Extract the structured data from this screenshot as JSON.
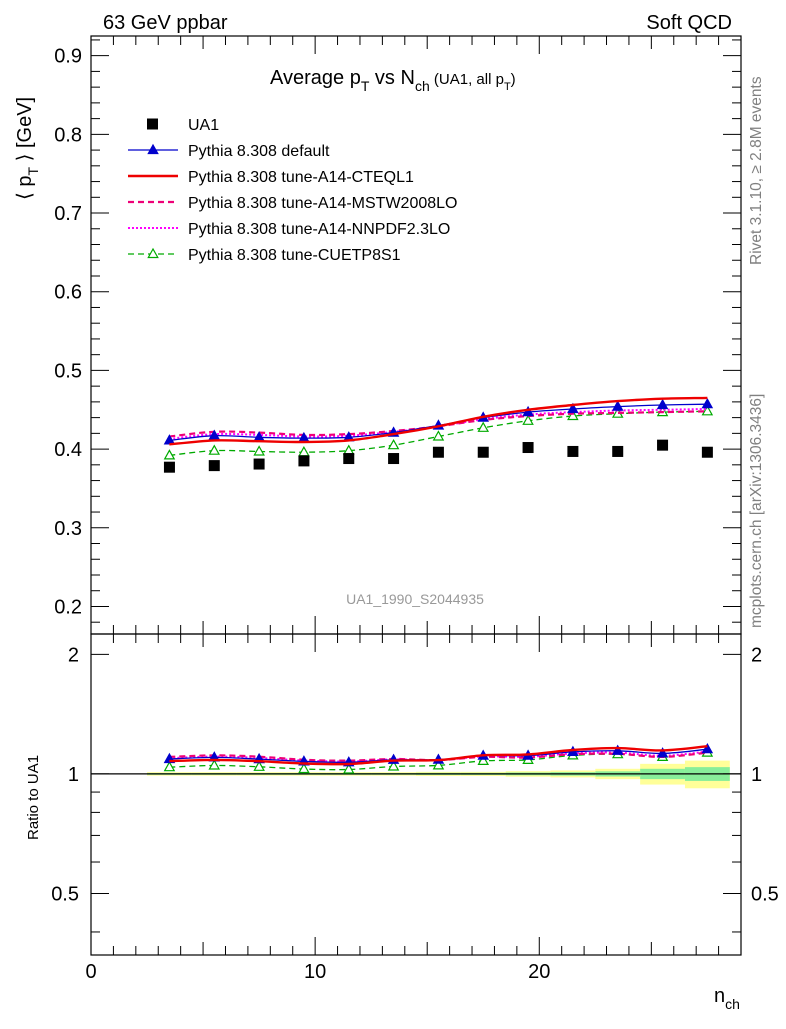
{
  "header": {
    "left": "63 GeV ppbar",
    "right": "Soft QCD"
  },
  "side_labels": {
    "rivet": "Rivet 3.1.10, ≥ 2.8M events",
    "mcplots": "mcplots.cern.ch [arXiv:1306.3436]"
  },
  "colors": {
    "data": "#000000",
    "default": "#0000cc",
    "cteql1": "#ee0000",
    "mstw": "#ee0077",
    "nnpdf": "#ff00ff",
    "cuetp8s1": "#00aa00",
    "band_yellow": "#ffff99",
    "band_green": "#88ee99"
  },
  "chart_data": {
    "type": "scatter",
    "title": "Average pT vs Nch (UA1, all pT)",
    "title_parts": {
      "main": "Average p",
      "sub_t": "T",
      "vs": " vs N",
      "sub_ch": "ch",
      "paren_open": " (UA1, all p",
      "paren_sub": "T",
      "paren_close": ")"
    },
    "ylabel": "⟨ pT ⟩ [GeV]",
    "ylabel_parts": {
      "open": "⟨ p",
      "sub": "T",
      "close": " ⟩ [GeV]"
    },
    "xlabel": "nch",
    "xlabel_parts": {
      "main": "n",
      "sub": "ch"
    },
    "ratio_ylabel": "Ratio to UA1",
    "watermark": "UA1_1990_S2044935",
    "xlim": [
      0,
      29
    ],
    "ylim": [
      0.165,
      0.925
    ],
    "ratio_ylim": [
      0.35,
      2.25
    ],
    "x_ticks": [
      0,
      10,
      20
    ],
    "y_ticks": [
      0.2,
      0.3,
      0.4,
      0.5,
      0.6,
      0.7,
      0.8,
      0.9
    ],
    "y_tick_labels": [
      "0.2",
      "0.3",
      "0.4",
      "0.5",
      "0.6",
      "0.7",
      "0.8",
      "0.9"
    ],
    "ratio_ticks": [
      0.5,
      1,
      2
    ],
    "ratio_tick_labels": [
      "0.5",
      "1",
      "2"
    ],
    "x": [
      3.5,
      5.5,
      7.5,
      9.5,
      11.5,
      13.5,
      15.5,
      17.5,
      19.5,
      21.5,
      23.5,
      25.5,
      27.5
    ],
    "bin_edges": [
      2.5,
      4.5,
      6.5,
      8.5,
      10.5,
      12.5,
      14.5,
      16.5,
      18.5,
      20.5,
      22.5,
      24.5,
      26.5,
      28.5
    ],
    "data": {
      "name": "UA1",
      "values": [
        0.377,
        0.379,
        0.381,
        0.385,
        0.388,
        0.388,
        0.396,
        0.396,
        0.402,
        0.397,
        0.397,
        0.405,
        0.396
      ],
      "rel_err": [
        0.005,
        0.005,
        0.005,
        0.005,
        0.005,
        0.005,
        0.006,
        0.006,
        0.008,
        0.01,
        0.015,
        0.03,
        0.04
      ]
    },
    "series": [
      {
        "name": "Pythia 8.308 default",
        "key": "default",
        "values": [
          0.411,
          0.417,
          0.415,
          0.414,
          0.415,
          0.421,
          0.43,
          0.44,
          0.447,
          0.451,
          0.454,
          0.456,
          0.457
        ]
      },
      {
        "name": "Pythia 8.308 tune-A14-CTEQL1",
        "key": "cteql1",
        "values": [
          0.406,
          0.411,
          0.41,
          0.409,
          0.411,
          0.419,
          0.429,
          0.441,
          0.45,
          0.456,
          0.461,
          0.464,
          0.465
        ]
      },
      {
        "name": "Pythia 8.308 tune-A14-MSTW2008LO",
        "key": "mstw",
        "values": [
          0.416,
          0.422,
          0.421,
          0.418,
          0.419,
          0.423,
          0.429,
          0.437,
          0.442,
          0.445,
          0.446,
          0.447,
          0.448
        ]
      },
      {
        "name": "Pythia 8.308 tune-A14-NNPDF2.3LO",
        "key": "nnpdf",
        "values": [
          0.413,
          0.419,
          0.418,
          0.416,
          0.417,
          0.422,
          0.429,
          0.438,
          0.444,
          0.447,
          0.449,
          0.45,
          0.451
        ]
      },
      {
        "name": "Pythia 8.308 tune-CUETP8S1",
        "key": "cuetp8s1",
        "values": [
          0.392,
          0.398,
          0.397,
          0.396,
          0.398,
          0.405,
          0.416,
          0.427,
          0.436,
          0.442,
          0.445,
          0.447,
          0.448
        ]
      }
    ]
  }
}
